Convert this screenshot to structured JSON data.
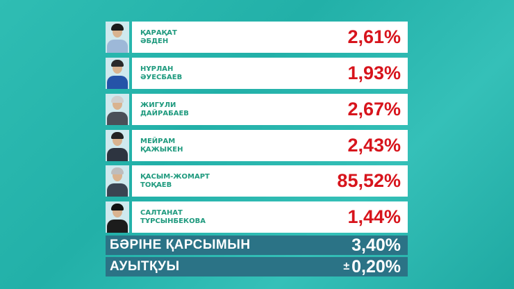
{
  "candidates": [
    {
      "first": "ҚАРАҚАТ",
      "last": "ӘБДЕН",
      "percent": "2,61%",
      "hair": "#1a1a1a",
      "suit": "#9db8d8"
    },
    {
      "first": "НҰРЛАН",
      "last": "ӘУЕСБАЕВ",
      "percent": "1,93%",
      "hair": "#2a2a2a",
      "suit": "#2553a8"
    },
    {
      "first": "ЖИГУЛИ",
      "last": "ДАЙРАБАЕВ",
      "percent": "2,67%",
      "hair": "#cfcfcf",
      "suit": "#4a4f58"
    },
    {
      "first": "МЕЙРАМ",
      "last": "ҚАЖЫКЕН",
      "percent": "2,43%",
      "hair": "#222",
      "suit": "#2d3440"
    },
    {
      "first": "ҚАСЫМ-ЖОМАРТ",
      "last": "ТОҚАЕВ",
      "percent": "85,52%",
      "hair": "#bdbdbd",
      "suit": "#3a4452"
    },
    {
      "first": "САЛТАНАТ",
      "last": "ТҰРСЫНБЕКОВА",
      "percent": "1,44%",
      "hair": "#111",
      "suit": "#1c1c1c"
    }
  ],
  "against_all": {
    "label": "БӘРІНЕ ҚАРСЫМЫН",
    "value": "3,40%"
  },
  "margin": {
    "label": "АУЫТҚУЫ",
    "sign": "±",
    "value": "0,20%"
  },
  "colors": {
    "background": "#27b5ad",
    "percent": "#d7141c",
    "name": "#1f9a7e",
    "summary_bar": "#2b7386"
  }
}
